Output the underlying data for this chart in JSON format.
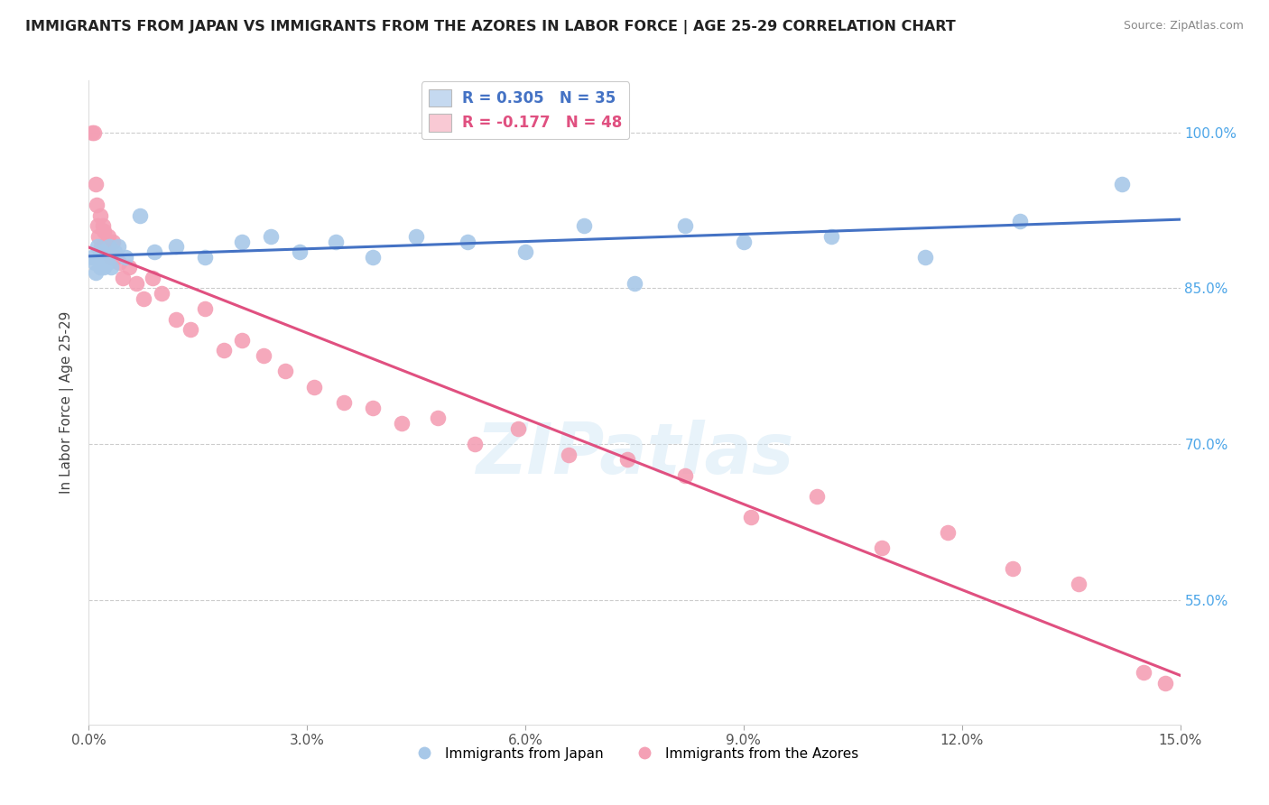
{
  "title": "IMMIGRANTS FROM JAPAN VS IMMIGRANTS FROM THE AZORES IN LABOR FORCE | AGE 25-29 CORRELATION CHART",
  "source": "Source: ZipAtlas.com",
  "ylabel": "In Labor Force | Age 25-29",
  "x_min": 0.0,
  "x_max": 15.0,
  "y_min": 43.0,
  "y_max": 105.0,
  "y_ticks": [
    55.0,
    70.0,
    85.0,
    100.0
  ],
  "x_ticks": [
    0.0,
    3.0,
    6.0,
    9.0,
    12.0,
    15.0
  ],
  "legend_labels": [
    "Immigrants from Japan",
    "Immigrants from the Azores"
  ],
  "R_japan": 0.305,
  "N_japan": 35,
  "R_azores": -0.177,
  "N_azores": 48,
  "japan_color": "#a8c8e8",
  "japan_line_color": "#4472c4",
  "azores_color": "#f4a0b5",
  "azores_line_color": "#e05080",
  "background_color": "#ffffff",
  "legend_box_color_japan": "#c5d9f0",
  "legend_box_color_azores": "#f9c9d4",
  "japan_x": [
    0.05,
    0.08,
    0.1,
    0.12,
    0.14,
    0.16,
    0.18,
    0.2,
    0.22,
    0.25,
    0.28,
    0.3,
    0.35,
    0.4,
    0.5,
    0.7,
    0.9,
    1.2,
    1.6,
    2.1,
    2.5,
    2.9,
    3.4,
    3.9,
    4.5,
    5.2,
    6.0,
    6.8,
    7.5,
    8.2,
    9.0,
    10.2,
    11.5,
    12.8,
    14.2
  ],
  "japan_y": [
    88.0,
    87.5,
    86.5,
    89.0,
    88.0,
    87.0,
    88.5,
    87.0,
    88.0,
    87.5,
    89.0,
    87.0,
    88.5,
    89.0,
    88.0,
    92.0,
    88.5,
    89.0,
    88.0,
    89.5,
    90.0,
    88.5,
    89.5,
    88.0,
    90.0,
    89.5,
    88.5,
    91.0,
    85.5,
    91.0,
    89.5,
    90.0,
    88.0,
    91.5,
    95.0
  ],
  "azores_x": [
    0.05,
    0.07,
    0.09,
    0.11,
    0.12,
    0.13,
    0.15,
    0.17,
    0.19,
    0.21,
    0.23,
    0.25,
    0.27,
    0.3,
    0.33,
    0.37,
    0.42,
    0.47,
    0.55,
    0.65,
    0.75,
    0.88,
    1.0,
    1.2,
    1.4,
    1.6,
    1.85,
    2.1,
    2.4,
    2.7,
    3.1,
    3.5,
    3.9,
    4.3,
    4.8,
    5.3,
    5.9,
    6.6,
    7.4,
    8.2,
    9.1,
    10.0,
    10.9,
    11.8,
    12.7,
    13.6,
    14.5,
    14.8
  ],
  "azores_y": [
    100.0,
    100.0,
    95.0,
    93.0,
    91.0,
    90.0,
    92.0,
    89.0,
    91.0,
    90.5,
    89.0,
    88.5,
    90.0,
    88.0,
    89.5,
    88.0,
    87.5,
    86.0,
    87.0,
    85.5,
    84.0,
    86.0,
    84.5,
    82.0,
    81.0,
    83.0,
    79.0,
    80.0,
    78.5,
    77.0,
    75.5,
    74.0,
    73.5,
    72.0,
    72.5,
    70.0,
    71.5,
    69.0,
    68.5,
    67.0,
    63.0,
    65.0,
    60.0,
    61.5,
    58.0,
    56.5,
    48.0,
    47.0
  ]
}
